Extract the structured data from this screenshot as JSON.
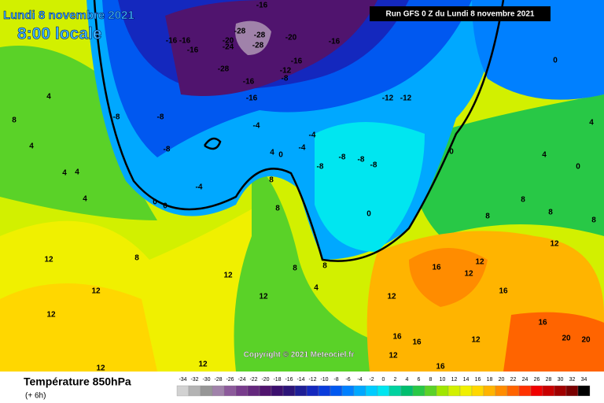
{
  "header": {
    "date": "Lundi 8 novembre 2021",
    "time": "8:00 locale"
  },
  "run": "Run GFS 0 Z du Lundi 8 novembre 2021",
  "copyright": "Copyright © 2021 Meteociel.fr",
  "footer": {
    "title": "Température 850hPa",
    "step": "(+ 6h)"
  },
  "legend": [
    {
      "value": -34,
      "color": "#d2d2d2"
    },
    {
      "value": -32,
      "color": "#b4b4b4"
    },
    {
      "value": -30,
      "color": "#969696"
    },
    {
      "value": -28,
      "color": "#a082aa"
    },
    {
      "value": -26,
      "color": "#8c5a9b"
    },
    {
      "value": -24,
      "color": "#783c8c"
    },
    {
      "value": -22,
      "color": "#64287d"
    },
    {
      "value": -20,
      "color": "#50146e"
    },
    {
      "value": -18,
      "color": "#3c0f6e"
    },
    {
      "value": -16,
      "color": "#2d1478"
    },
    {
      "value": -14,
      "color": "#1e1e96"
    },
    {
      "value": -12,
      "color": "#1428be"
    },
    {
      "value": -10,
      "color": "#0a3cdc"
    },
    {
      "value": -8,
      "color": "#0058f0"
    },
    {
      "value": -6,
      "color": "#0080ff"
    },
    {
      "value": -4,
      "color": "#00a8ff"
    },
    {
      "value": -2,
      "color": "#00ccff"
    },
    {
      "value": 0,
      "color": "#00e6f0"
    },
    {
      "value": 2,
      "color": "#00d2a0"
    },
    {
      "value": 4,
      "color": "#00be6e"
    },
    {
      "value": 6,
      "color": "#28c846"
    },
    {
      "value": 8,
      "color": "#5ad228"
    },
    {
      "value": 10,
      "color": "#a0e600"
    },
    {
      "value": 12,
      "color": "#d2f000"
    },
    {
      "value": 14,
      "color": "#f0f000"
    },
    {
      "value": 16,
      "color": "#ffd700"
    },
    {
      "value": 18,
      "color": "#ffb400"
    },
    {
      "value": 20,
      "color": "#ff8c00"
    },
    {
      "value": 22,
      "color": "#ff6400"
    },
    {
      "value": 24,
      "color": "#ff3200"
    },
    {
      "value": 26,
      "color": "#f00000"
    },
    {
      "value": 28,
      "color": "#c80000"
    },
    {
      "value": 30,
      "color": "#a00000"
    },
    {
      "value": 32,
      "color": "#780000"
    },
    {
      "value": 34,
      "color": "#000000"
    }
  ],
  "contour_labels": [
    -16,
    -16,
    -16,
    -20,
    -24,
    -28,
    -28,
    -28,
    -16,
    -20,
    -16,
    -16,
    -12,
    -8,
    -28,
    -16,
    -16,
    -12,
    -12,
    -8,
    -8,
    -8,
    -4,
    0,
    0,
    -4,
    4,
    0,
    -4,
    -4,
    -8,
    -8,
    -8,
    -8,
    0,
    0,
    0,
    0,
    4,
    8,
    4,
    4,
    4,
    4,
    8,
    12,
    12,
    12,
    12,
    12,
    8,
    8,
    12,
    8,
    8,
    12,
    16,
    12,
    16,
    16,
    16,
    20,
    20,
    16,
    12,
    4,
    8,
    8,
    8,
    4,
    4,
    8,
    12,
    12,
    16,
    12,
    12
  ]
}
